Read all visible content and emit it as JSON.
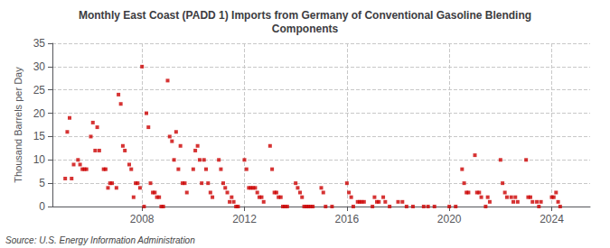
{
  "chart_data": {
    "type": "scatter",
    "title": "Monthly East Coast (PADD 1) Imports from Germany of Conventional Gasoline Blending\nComponents",
    "ylabel": "Thousand Barrels per Day",
    "annotations": [
      "Source: U.S. Energy Information Administration"
    ],
    "color": "#cc0000",
    "marker": "square",
    "grid": true,
    "xlim": [
      2004.5,
      2025.5
    ],
    "xticks": [
      2008,
      2012,
      2016,
      2020,
      2024
    ],
    "ylim": [
      0,
      35
    ],
    "yticks": [
      0,
      5,
      10,
      15,
      20,
      25,
      30,
      35
    ],
    "x": [
      2005.0,
      2005.08,
      2005.17,
      2005.25,
      2005.33,
      2005.5,
      2005.58,
      2005.67,
      2005.75,
      2005.83,
      2006.0,
      2006.08,
      2006.17,
      2006.25,
      2006.33,
      2006.5,
      2006.58,
      2006.67,
      2006.75,
      2006.83,
      2007.0,
      2007.08,
      2007.17,
      2007.25,
      2007.33,
      2007.5,
      2007.58,
      2007.67,
      2007.75,
      2007.83,
      2007.92,
      2008.0,
      2008.08,
      2008.17,
      2008.25,
      2008.33,
      2008.42,
      2008.5,
      2008.58,
      2008.67,
      2008.75,
      2008.83,
      2009.0,
      2009.08,
      2009.17,
      2009.25,
      2009.33,
      2009.42,
      2009.5,
      2009.58,
      2009.67,
      2009.75,
      2010.0,
      2010.08,
      2010.17,
      2010.25,
      2010.33,
      2010.42,
      2010.5,
      2010.58,
      2010.67,
      2010.75,
      2011.0,
      2011.08,
      2011.17,
      2011.25,
      2011.33,
      2011.42,
      2011.5,
      2011.58,
      2011.67,
      2011.75,
      2012.0,
      2012.08,
      2012.17,
      2012.25,
      2012.33,
      2012.42,
      2012.5,
      2012.58,
      2012.67,
      2012.75,
      2013.0,
      2013.08,
      2013.17,
      2013.25,
      2013.33,
      2013.42,
      2013.5,
      2013.58,
      2013.67,
      2014.0,
      2014.08,
      2014.17,
      2014.25,
      2014.33,
      2014.42,
      2014.5,
      2014.58,
      2014.67,
      2015.0,
      2015.08,
      2015.17,
      2015.42,
      2016.0,
      2016.08,
      2016.17,
      2016.25,
      2016.42,
      2016.5,
      2016.58,
      2016.67,
      2017.0,
      2017.08,
      2017.17,
      2017.25,
      2017.42,
      2017.5,
      2017.67,
      2018.0,
      2018.17,
      2018.33,
      2018.58,
      2019.0,
      2019.17,
      2019.42,
      2020.0,
      2020.25,
      2020.5,
      2020.58,
      2020.67,
      2020.75,
      2021.0,
      2021.08,
      2021.17,
      2021.25,
      2021.42,
      2021.5,
      2021.58,
      2022.0,
      2022.08,
      2022.17,
      2022.25,
      2022.42,
      2022.5,
      2022.58,
      2022.67,
      2023.0,
      2023.08,
      2023.17,
      2023.25,
      2023.42,
      2023.5,
      2023.58,
      2024.0,
      2024.08,
      2024.17,
      2024.25,
      2024.33
    ],
    "values": [
      6,
      16,
      19,
      6,
      9,
      10,
      9,
      8,
      8,
      8,
      15,
      18,
      12,
      17,
      12,
      8,
      8,
      4,
      5,
      5,
      4,
      24,
      22,
      13,
      12,
      9,
      8,
      2,
      5,
      5,
      4,
      30,
      0,
      20,
      17,
      5,
      3,
      3,
      2,
      2,
      0,
      0,
      27,
      15,
      14,
      10,
      16,
      8,
      13,
      5,
      5,
      3,
      8,
      12,
      13,
      10,
      5,
      10,
      8,
      5,
      3,
      2,
      10,
      8,
      5,
      4,
      3,
      1,
      2,
      1,
      0,
      0,
      10,
      8,
      4,
      4,
      4,
      4,
      3,
      2,
      2,
      1,
      13,
      8,
      3,
      3,
      2,
      2,
      0,
      0,
      0,
      5,
      4,
      3,
      2,
      0,
      0,
      0,
      0,
      0,
      4,
      3,
      0,
      0,
      5,
      3,
      2,
      0,
      1,
      1,
      1,
      1,
      0,
      2,
      1,
      1,
      2,
      1,
      0,
      1,
      1,
      0,
      0,
      0,
      0,
      0,
      0,
      0,
      8,
      5,
      3,
      3,
      11,
      3,
      3,
      2,
      0,
      2,
      1,
      10,
      5,
      3,
      2,
      2,
      1,
      2,
      1,
      10,
      2,
      2,
      1,
      1,
      0,
      1,
      2,
      2,
      3,
      1,
      0
    ]
  }
}
